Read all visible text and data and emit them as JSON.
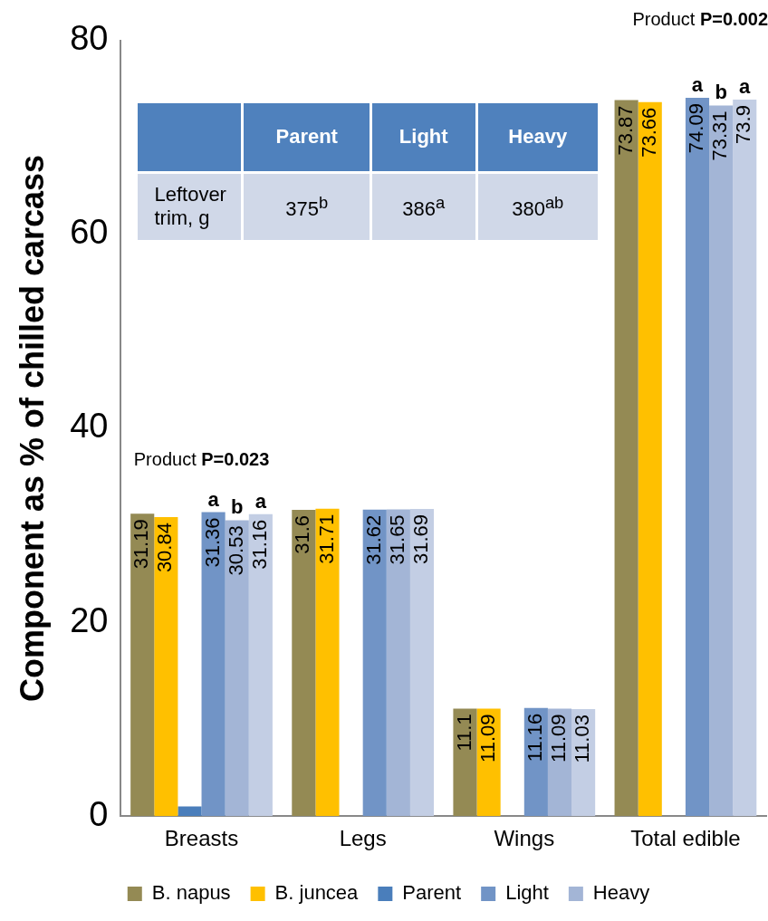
{
  "chart_data": {
    "type": "bar",
    "ylabel": "Component as % of chilled carcass",
    "categories": [
      "Breasts",
      "Legs",
      "Wings",
      "Total edible"
    ],
    "series": [
      {
        "name": "B. napus",
        "color": "#948a54",
        "values": [
          31.19,
          31.6,
          11.1,
          73.87
        ],
        "value_labels": [
          "31.19",
          "31.6",
          "11.1",
          "73.87"
        ]
      },
      {
        "name": "B. juncea",
        "color": "#ffc000",
        "values": [
          30.84,
          31.71,
          11.09,
          73.66
        ],
        "value_labels": [
          "30.84",
          "31.71",
          "11.09",
          "73.66"
        ]
      },
      {
        "name": "Parent",
        "color": "#4a7ebb",
        "values": [
          1,
          null,
          null,
          null
        ]
      },
      {
        "name": "Light",
        "color": "#7194c6",
        "values": [
          31.36,
          31.62,
          11.16,
          74.09
        ],
        "value_labels": [
          "31.36",
          "31.62",
          "11.16",
          "74.09"
        ]
      },
      {
        "name": "Heavy",
        "color": "#a3b5d6",
        "values": [
          30.53,
          31.65,
          11.09,
          73.31
        ],
        "value_labels": [
          "30.53",
          "31.65",
          "11.09",
          "73.31"
        ]
      },
      {
        "color": "#c3cee4",
        "values": [
          31.16,
          31.69,
          11.03,
          73.9
        ],
        "value_labels": [
          "31.16",
          "31.69",
          "11.03",
          "73.9"
        ]
      }
    ],
    "ylim": [
      0,
      80
    ],
    "yticks": [
      0,
      20,
      40,
      60,
      80
    ],
    "grid": false,
    "legend": "bottom",
    "annotations": [
      "Product P=0.023",
      "Product P=0.002",
      {
        "text": "a",
        "x": "Breasts",
        "y": 31.36
      },
      {
        "text": "b",
        "x": "Breasts",
        "y": 30.53
      },
      {
        "text": "a",
        "x": "Breasts",
        "y": 31.16
      },
      {
        "text": "a",
        "x": "Total edible",
        "y": 74.09
      },
      {
        "text": "b",
        "x": "Total edible",
        "y": 73.31
      },
      {
        "text": "a",
        "x": "Total edible",
        "y": 73.9
      },
      "Parent",
      "Light",
      "Heavy",
      "Leftover trim, g",
      "375$^{b}$",
      "386$^{a}$",
      "380$^{ab}$"
    ]
  }
}
